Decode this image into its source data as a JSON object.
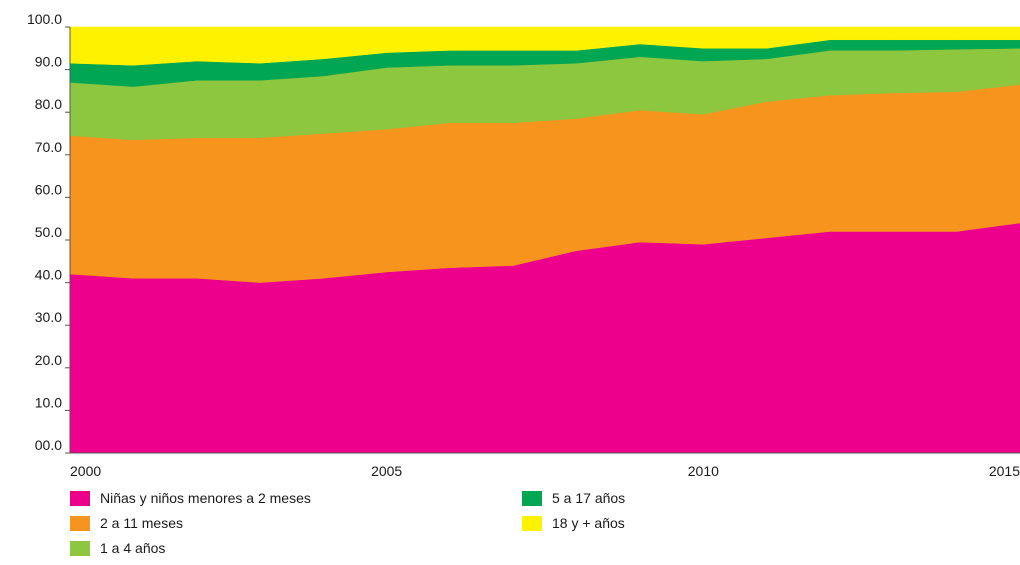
{
  "chart_data": {
    "type": "area",
    "stacked": true,
    "title": "",
    "xlabel": "",
    "ylabel": "",
    "x": [
      2000,
      2001,
      2002,
      2003,
      2004,
      2005,
      2006,
      2007,
      2008,
      2009,
      2010,
      2011,
      2012,
      2013,
      2014,
      2015
    ],
    "x_ticks": [
      "2000",
      "2005",
      "2010",
      "2015"
    ],
    "y_ticks": [
      "00.0",
      "10.0",
      "20.0",
      "30.0",
      "40.0",
      "50.0",
      "60.0",
      "70.0",
      "80.0",
      "90.0",
      "100.0"
    ],
    "ylim": [
      0,
      100
    ],
    "grid": false,
    "legend_position": "bottom",
    "series": [
      {
        "name": "Niñas y niños menores a 2 meses",
        "color": "#EC008C",
        "values": [
          42.0,
          41.0,
          41.0,
          40.0,
          41.0,
          42.5,
          43.5,
          44.0,
          47.5,
          49.5,
          49.0,
          50.5,
          52.0,
          52.0,
          52.0,
          54.0
        ]
      },
      {
        "name": "2 a 11 meses",
        "color": "#F7941D",
        "values": [
          32.5,
          32.5,
          33.0,
          34.0,
          34.0,
          33.5,
          34.0,
          33.5,
          31.0,
          31.0,
          30.5,
          32.0,
          32.0,
          32.5,
          32.8,
          32.5
        ]
      },
      {
        "name": "1 a 4 años",
        "color": "#8DC63F",
        "values": [
          12.5,
          12.5,
          13.5,
          13.5,
          13.5,
          14.5,
          13.5,
          13.5,
          13.0,
          12.5,
          12.5,
          10.0,
          10.5,
          10.0,
          10.0,
          8.5
        ]
      },
      {
        "name": "5 a 17 años",
        "color": "#00A651",
        "values": [
          4.5,
          5.0,
          4.5,
          4.0,
          4.0,
          3.5,
          3.5,
          3.5,
          3.0,
          3.0,
          3.0,
          2.5,
          2.5,
          2.5,
          2.2,
          2.0
        ]
      },
      {
        "name": "18 y + años",
        "color": "#FFF200",
        "values": [
          8.5,
          9.0,
          8.0,
          8.5,
          7.5,
          6.0,
          5.5,
          5.5,
          5.5,
          4.0,
          5.0,
          5.0,
          3.0,
          3.0,
          3.0,
          3.0
        ]
      }
    ]
  }
}
